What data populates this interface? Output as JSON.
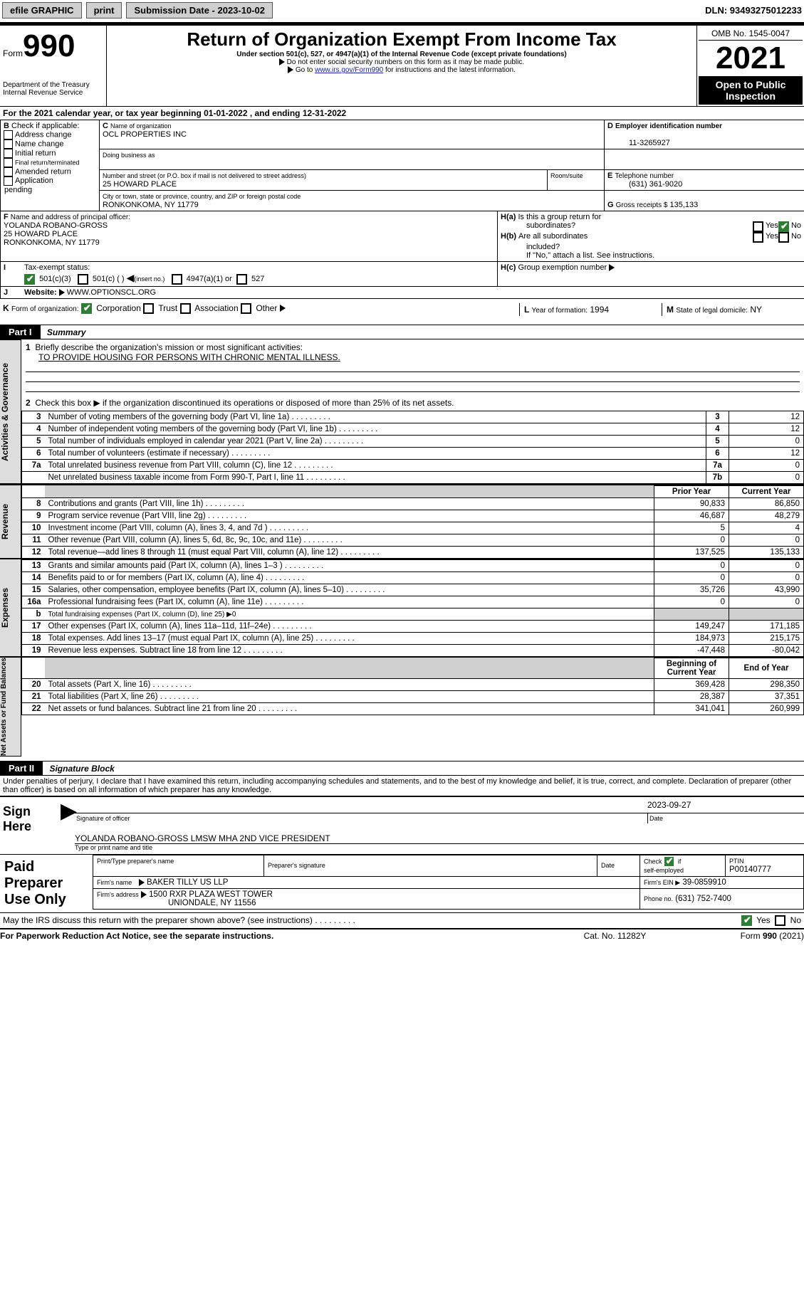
{
  "topbar": {
    "efile": "efile GRAPHIC",
    "print": "print",
    "subLabel": "Submission Date - 2023-10-02",
    "dln": "DLN: 93493275012233"
  },
  "header": {
    "formWord": "Form",
    "formNum": "990",
    "dept": "Department of the Treasury",
    "irs": "Internal Revenue Service",
    "title": "Return of Organization Exempt From Income Tax",
    "sub": "Under section 501(c), 527, or 4947(a)(1) of the Internal Revenue Code (except private foundations)",
    "line2": "Do not enter social security numbers on this form as it may be made public.",
    "line3a": "Go to ",
    "line3link": "www.irs.gov/Form990",
    "line3b": " for instructions and the latest information.",
    "omb": "OMB No. 1545-0047",
    "year": "2021",
    "band": "Open to Public Inspection"
  },
  "A": "For the 2021 calendar year, or tax year beginning 01-01-2022   , and ending 12-31-2022",
  "B": {
    "label": "Check if applicable:",
    "c1": "Address change",
    "c2": "Name change",
    "c3": "Initial return",
    "c4": "Final return/terminated",
    "c5": "Amended return",
    "c6a": "Application",
    "c6b": "pending"
  },
  "C": {
    "nameLbl": "Name of organization",
    "name": "OCL PROPERTIES INC",
    "dbaLbl": "Doing business as",
    "addrLbl": "Number and street (or P.O. box if mail is not delivered to street address)",
    "roomLbl": "Room/suite",
    "addr": "25 HOWARD PLACE",
    "cityLbl": "City or town, state or province, country, and ZIP or foreign postal code",
    "city": "RONKONKOMA, NY  11779"
  },
  "D": {
    "lbl": "Employer identification number",
    "val": "11-3265927"
  },
  "E": {
    "lbl": "Telephone number",
    "val": "(631) 361-9020"
  },
  "G": {
    "lbl": "Gross receipts $",
    "val": "135,133"
  },
  "F": {
    "lbl": "Name and address of principal officer:",
    "name": "YOLANDA ROBANO-GROSS",
    "addr": "25 HOWARD PLACE",
    "city": "RONKONKOMA, NY  11779"
  },
  "H": {
    "aLbl": "Is this a group return for",
    "aLbl2": "subordinates?",
    "bLbl": "Are all subordinates",
    "bLbl2": "included?",
    "note": "If \"No,\" attach a list. See instructions.",
    "cLbl": "Group exemption number",
    "yes": "Yes",
    "no": "No"
  },
  "I": {
    "lbl": "Tax-exempt status:",
    "o1": "501(c)(3)",
    "o2a": "501(c) ( )",
    "o2b": "(insert no.)",
    "o3": "4947(a)(1) or",
    "o4": "527"
  },
  "J": {
    "lbl": "Website:",
    "val": "WWW.OPTIONSCL.ORG"
  },
  "K": {
    "lbl": "Form of organization:",
    "o1": "Corporation",
    "o2": "Trust",
    "o3": "Association",
    "o4": "Other"
  },
  "L": {
    "lbl": "Year of formation:",
    "val": "1994"
  },
  "M": {
    "lbl": "State of legal domicile:",
    "val": "NY"
  },
  "part1": {
    "lbl": "Part I",
    "title": "Summary",
    "q1": "Briefly describe the organization's mission or most significant activities:",
    "q1v": "TO PROVIDE HOUSING FOR PERSONS WITH CHRONIC MENTAL ILLNESS.",
    "q2": "Check this box  ▶       if the organization discontinued its operations or disposed of more than 25% of its net assets.",
    "rows_gov": [
      {
        "n": "3",
        "d": "Number of voting members of the governing body (Part VI, line 1a)",
        "k": "3",
        "v": "12"
      },
      {
        "n": "4",
        "d": "Number of independent voting members of the governing body (Part VI, line 1b)",
        "k": "4",
        "v": "12"
      },
      {
        "n": "5",
        "d": "Total number of individuals employed in calendar year 2021 (Part V, line 2a)",
        "k": "5",
        "v": "0"
      },
      {
        "n": "6",
        "d": "Total number of volunteers (estimate if necessary)",
        "k": "6",
        "v": "12"
      },
      {
        "n": "7a",
        "d": "Total unrelated business revenue from Part VIII, column (C), line 12",
        "k": "7a",
        "v": "0"
      },
      {
        "n": "",
        "d": "Net unrelated business taxable income from Form 990-T, Part I, line 11",
        "k": "7b",
        "v": "0"
      }
    ],
    "hdr_py": "Prior Year",
    "hdr_cy": "Current Year",
    "rows_rev": [
      {
        "n": "8",
        "d": "Contributions and grants (Part VIII, line 1h)",
        "py": "90,833",
        "cy": "86,850"
      },
      {
        "n": "9",
        "d": "Program service revenue (Part VIII, line 2g)",
        "py": "46,687",
        "cy": "48,279"
      },
      {
        "n": "10",
        "d": "Investment income (Part VIII, column (A), lines 3, 4, and 7d )",
        "py": "5",
        "cy": "4"
      },
      {
        "n": "11",
        "d": "Other revenue (Part VIII, column (A), lines 5, 6d, 8c, 9c, 10c, and 11e)",
        "py": "0",
        "cy": "0"
      },
      {
        "n": "12",
        "d": "Total revenue—add lines 8 through 11 (must equal Part VIII, column (A), line 12)",
        "py": "137,525",
        "cy": "135,133"
      }
    ],
    "rows_exp": [
      {
        "n": "13",
        "d": "Grants and similar amounts paid (Part IX, column (A), lines 1–3 )",
        "py": "0",
        "cy": "0"
      },
      {
        "n": "14",
        "d": "Benefits paid to or for members (Part IX, column (A), line 4)",
        "py": "0",
        "cy": "0"
      },
      {
        "n": "15",
        "d": "Salaries, other compensation, employee benefits (Part IX, column (A), lines 5–10)",
        "py": "35,726",
        "cy": "43,990"
      },
      {
        "n": "16a",
        "d": "Professional fundraising fees (Part IX, column (A), line 11e)",
        "py": "0",
        "cy": "0"
      },
      {
        "n": "b",
        "d": "Total fundraising expenses (Part IX, column (D), line 25) ▶0",
        "shade": true
      },
      {
        "n": "17",
        "d": "Other expenses (Part IX, column (A), lines 11a–11d, 11f–24e)",
        "py": "149,247",
        "cy": "171,185"
      },
      {
        "n": "18",
        "d": "Total expenses. Add lines 13–17 (must equal Part IX, column (A), line 25)",
        "py": "184,973",
        "cy": "215,175"
      },
      {
        "n": "19",
        "d": "Revenue less expenses. Subtract line 18 from line 12",
        "py": "-47,448",
        "cy": "-80,042"
      }
    ],
    "hdr_bcy": "Beginning of Current Year",
    "hdr_eoy": "End of Year",
    "rows_na": [
      {
        "n": "20",
        "d": "Total assets (Part X, line 16)",
        "py": "369,428",
        "cy": "298,350"
      },
      {
        "n": "21",
        "d": "Total liabilities (Part X, line 26)",
        "py": "28,387",
        "cy": "37,351"
      },
      {
        "n": "22",
        "d": "Net assets or fund balances. Subtract line 21 from line 20",
        "py": "341,041",
        "cy": "260,999"
      }
    ]
  },
  "tabs": {
    "gov": "Activities & Governance",
    "rev": "Revenue",
    "exp": "Expenses",
    "na": "Net Assets or Fund Balances"
  },
  "part2": {
    "lbl": "Part II",
    "title": "Signature Block",
    "decl": "Under penalties of perjury, I declare that I have examined this return, including accompanying schedules and statements, and to the best of my knowledge and belief, it is true, correct, and complete. Declaration of preparer (other than officer) is based on all information of which preparer has any knowledge."
  },
  "sign": {
    "lbl": "Sign Here",
    "sigLbl": "Signature of officer",
    "dateLbl": "Date",
    "date": "2023-09-27",
    "name": "YOLANDA ROBANO-GROSS LMSW MHA  2ND VICE PRESIDENT",
    "nameLbl": "Type or print name and title"
  },
  "prep": {
    "lbl1": "Paid",
    "lbl2": "Preparer",
    "lbl3": "Use Only",
    "c1": "Print/Type preparer's name",
    "c2": "Preparer's signature",
    "c3": "Date",
    "c4a": "Check",
    "c4b": "if",
    "c4c": "self-employed",
    "c5": "PTIN",
    "c5v": "P00140777",
    "firmLbl": "Firm's name",
    "firm": "BAKER TILLY US LLP",
    "einLbl": "Firm's EIN ▶",
    "ein": "39-0859910",
    "addrLbl": "Firm's address",
    "addr1": "1500 RXR PLAZA WEST TOWER",
    "addr2": "UNIONDALE, NY  11556",
    "phoneLbl": "Phone no.",
    "phone": "(631) 752-7400",
    "discuss": "May the IRS discuss this return with the preparer shown above? (see instructions)"
  },
  "footer": {
    "left": "For Paperwork Reduction Act Notice, see the separate instructions.",
    "mid": "Cat. No. 11282Y",
    "right": "Form 990 (2021)"
  }
}
